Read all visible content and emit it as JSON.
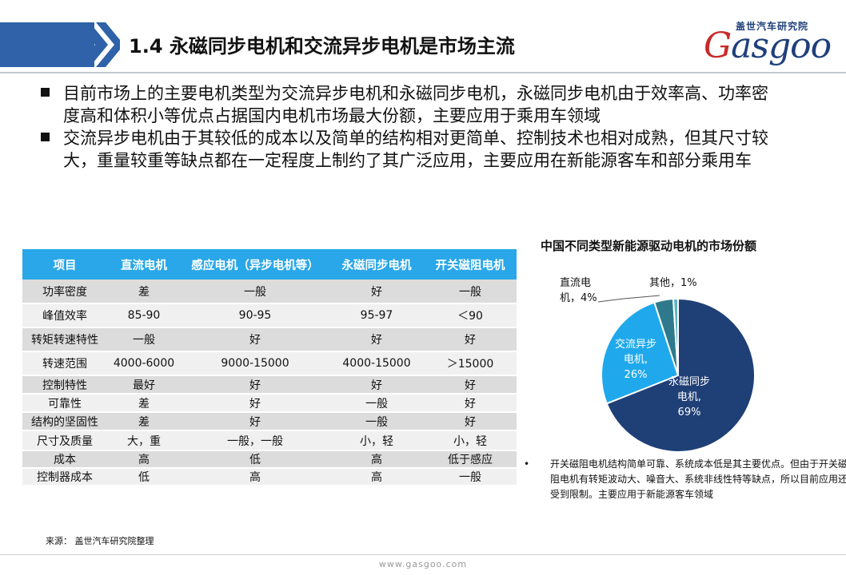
{
  "header": {
    "title": "1.4 永磁同步电机和交流异步电机是市场主流",
    "logo_cn": "盖世汽车研究院",
    "logo_en_first": "G",
    "logo_en_rest": "asgoo"
  },
  "bullets": [
    "目前市场上的主要电机类型为交流异步电机和永磁同步电机，永磁同步电机由于效率高、功率密度高和体积小等优点占据国内电机市场最大份额，主要应用于乘用车领域",
    "交流异步电机由于其较低的成本以及简单的结构相对更简单、控制技术也相对成熟，但其尺寸较大，重量较重等缺点都在一定程度上制约了其广泛应用，主要应用在新能源客车和部分乘用车"
  ],
  "table": {
    "headers": [
      "项目",
      "直流电机",
      "感应电机（异步电机等）",
      "永磁同步电机",
      "开关磁阻电机"
    ],
    "rows": [
      [
        "功率密度",
        "差",
        "一般",
        "好",
        "一般"
      ],
      [
        "峰值效率",
        "85-90",
        "90-95",
        "95-97",
        "＜90"
      ],
      [
        "转矩转速特性",
        "一般",
        "好",
        "好",
        "好"
      ],
      [
        "转速范围",
        "4000-6000",
        "9000-15000",
        "4000-15000",
        "＞15000"
      ],
      [
        "控制特性",
        "最好",
        "好",
        "好",
        "好"
      ],
      [
        "可靠性",
        "差",
        "好",
        "一般",
        "好"
      ],
      [
        "结构的坚固性",
        "差",
        "好",
        "一般",
        "好"
      ],
      [
        "尺寸及质量",
        "大，重",
        "一般，一般",
        "小，轻",
        "小，轻"
      ],
      [
        "成本",
        "高",
        "低",
        "高",
        "低于感应"
      ],
      [
        "控制器成本",
        "低",
        "高",
        "高",
        "一般"
      ]
    ]
  },
  "chart_data": {
    "type": "pie",
    "title": "中国不同类型新能源驱动电机的市场份额",
    "slices": [
      {
        "label": "永磁同步电机",
        "value": 69,
        "value_label": "69%",
        "color": "#1f3f77",
        "text_lines": [
          "永磁同步",
          "电机,",
          "69%"
        ]
      },
      {
        "label": "交流异步电机",
        "value": 26,
        "value_label": "26%",
        "color": "#1fa9ec",
        "text_lines": [
          "交流异步",
          "电机,",
          "26%"
        ]
      },
      {
        "label": "直流电机",
        "value": 4,
        "value_label": "4%",
        "color": "#2e7a8c",
        "text_lines": [
          "直流电",
          "机，4%"
        ]
      },
      {
        "label": "其他",
        "value": 1,
        "value_label": "1%",
        "color": "#5fb3c9",
        "text_lines": [
          "其他，1%"
        ]
      }
    ]
  },
  "note": {
    "bullet": "•",
    "text": "开关磁阻电机结构简单可靠、系统成本低是其主要优点。但由于开关磁阻电机有转矩波动大、噪音大、系统非线性特等缺点，所以目前应用还受到限制。主要应用于新能源客车领域"
  },
  "source": "来源：  盖世汽车研究院整理",
  "footer": "www.gasgoo.com"
}
